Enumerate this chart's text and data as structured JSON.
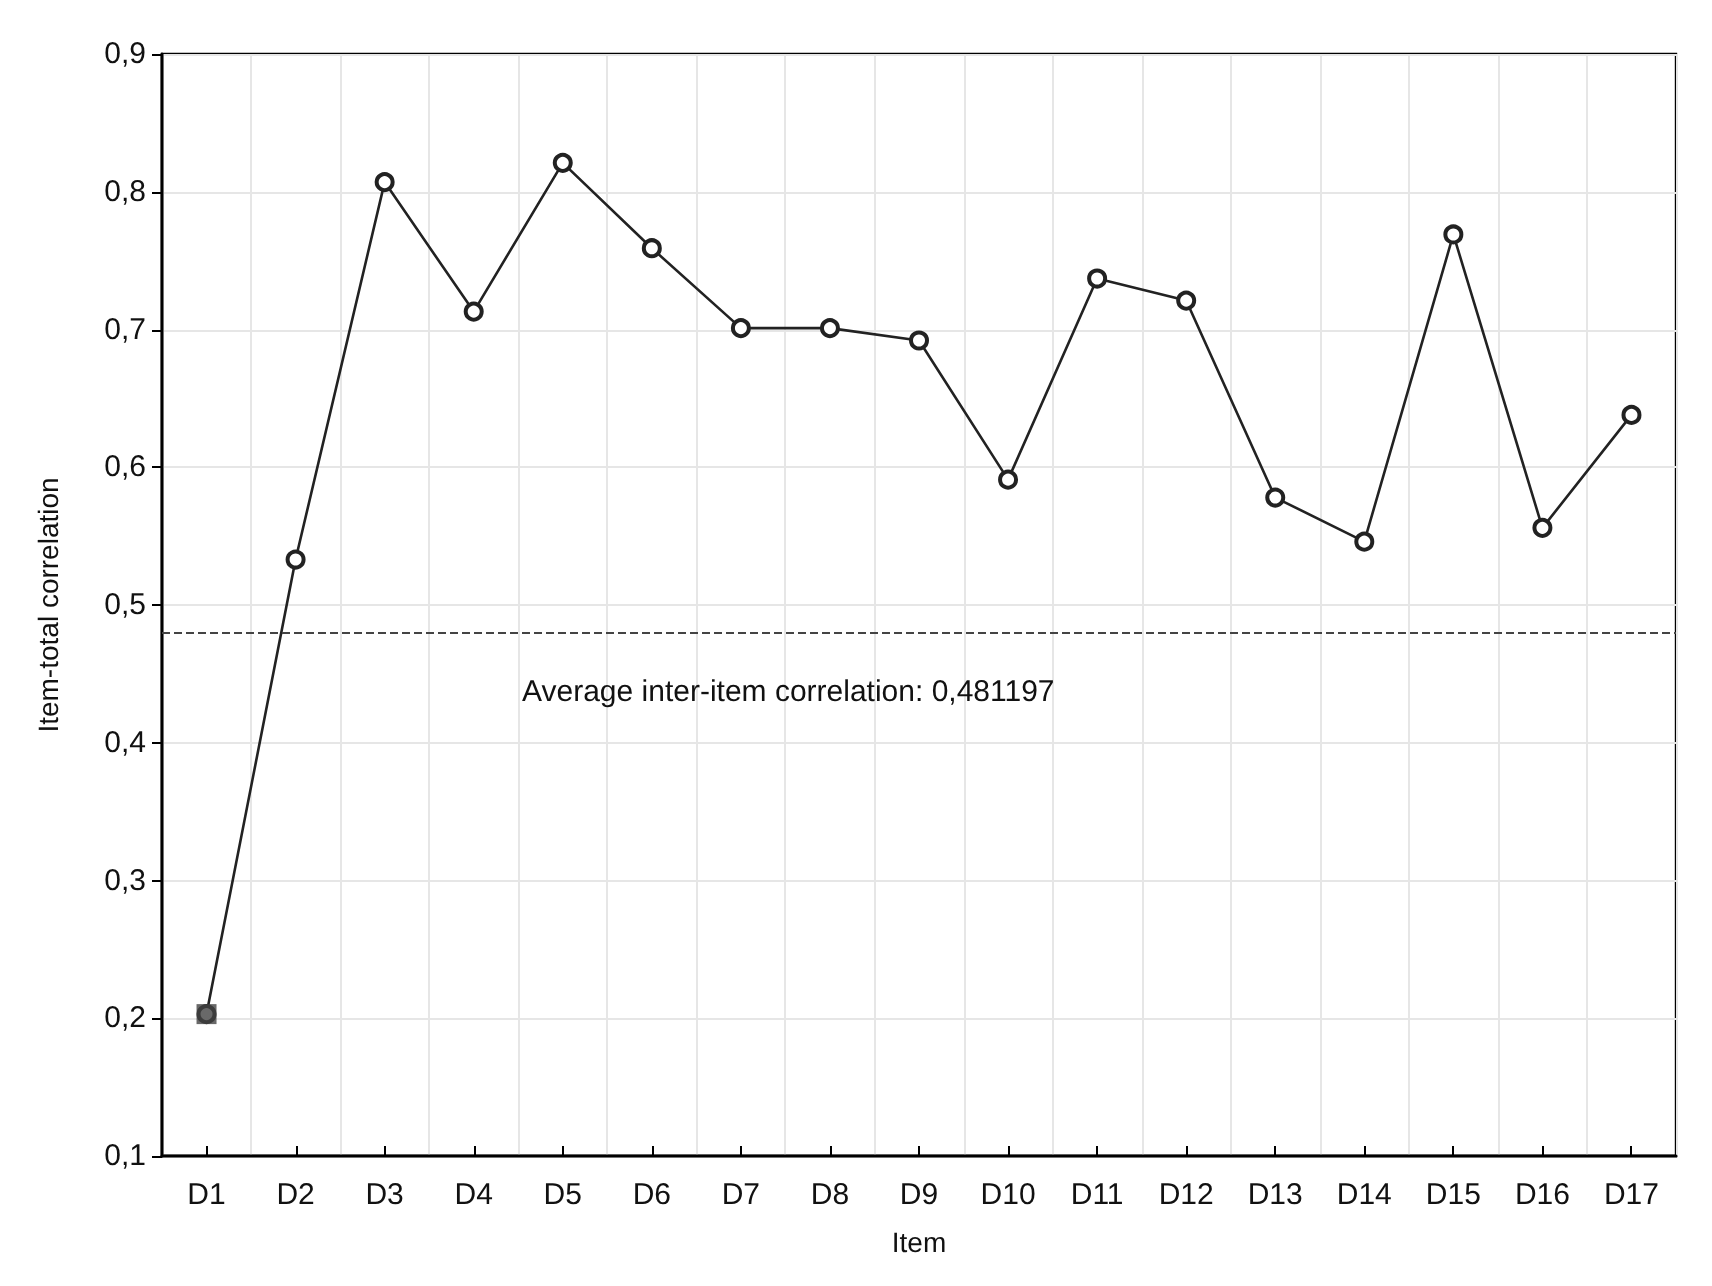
{
  "chart_data": {
    "type": "line",
    "xlabel": "Item",
    "ylabel": "Item-total correlation",
    "categories": [
      "D1",
      "D2",
      "D3",
      "D4",
      "D5",
      "D6",
      "D7",
      "D8",
      "D9",
      "D10",
      "D11",
      "D12",
      "D13",
      "D14",
      "D15",
      "D16",
      "D17"
    ],
    "series": [
      {
        "color": "#222222",
        "marker": "circle",
        "values": [
          0.203,
          0.533,
          0.807,
          0.713,
          0.821,
          0.759,
          0.701,
          0.701,
          0.692,
          0.591,
          0.737,
          0.721,
          0.578,
          0.546,
          0.769,
          0.556,
          0.638
        ]
      },
      {
        "type": "scatter",
        "color": "#444444",
        "marker": "square",
        "x": [
          "D1"
        ],
        "values": [
          0.203
        ]
      }
    ],
    "ylim": [
      0.1,
      0.9
    ],
    "yticks": [
      {
        "value": 0.1,
        "label": "0,1"
      },
      {
        "value": 0.2,
        "label": "0,2"
      },
      {
        "value": 0.3,
        "label": "0,3"
      },
      {
        "value": 0.4,
        "label": "0,4"
      },
      {
        "value": 0.5,
        "label": "0,5"
      },
      {
        "value": 0.6,
        "label": "0,6"
      },
      {
        "value": 0.7,
        "label": "0,7"
      },
      {
        "value": 0.8,
        "label": "0,8"
      },
      {
        "value": 0.9,
        "label": "0,9"
      }
    ],
    "ref_lines": [
      {
        "axis": "y",
        "value": 0.481197,
        "label": "Average inter-item correlation: 0,481197",
        "color": "#444444",
        "line_style": "dashed"
      }
    ],
    "grid": true
  }
}
